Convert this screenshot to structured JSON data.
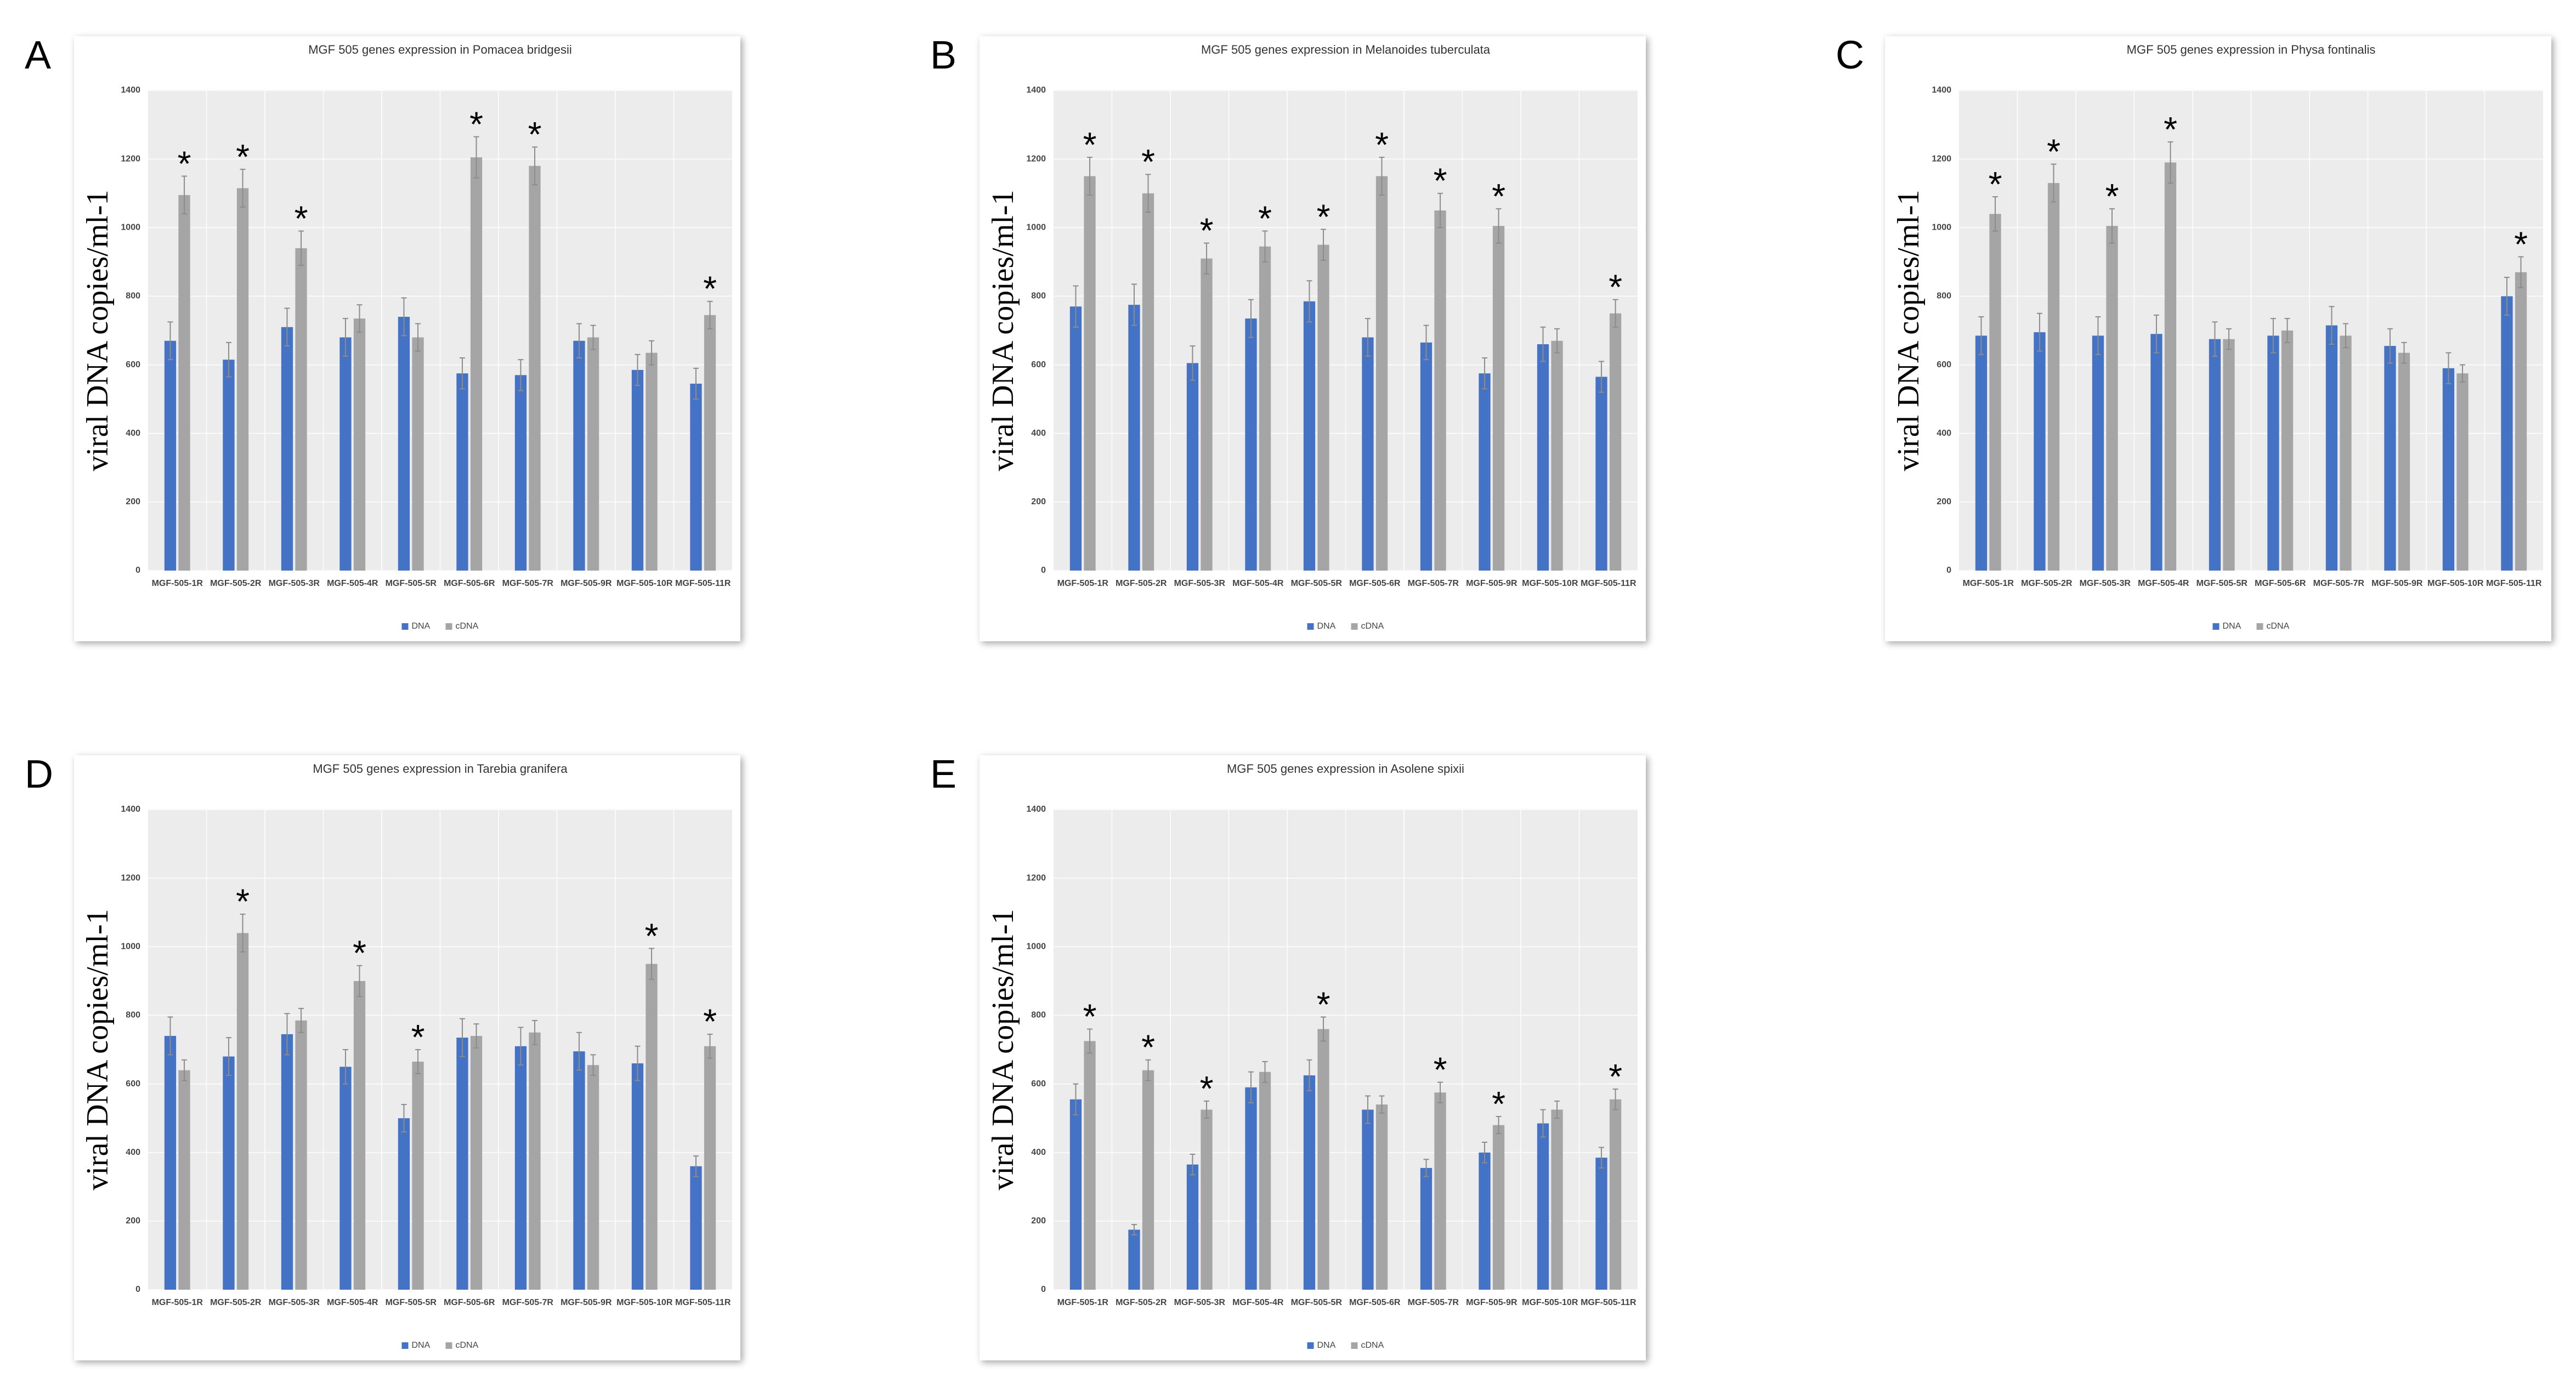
{
  "chart_data": [
    {
      "type": "bar",
      "panel": "A",
      "title": "MGF 505 genes expression in Pomacea bridgesii",
      "y_label": "viral DNA copies/ml-1",
      "categories": [
        "MGF-505-1R",
        "MGF-505-2R",
        "MGF-505-3R",
        "MGF-505-4R",
        "MGF-505-5R",
        "MGF-505-6R",
        "MGF-505-7R",
        "MGF-505-9R",
        "MGF-505-10R",
        "MGF-505-11R"
      ],
      "series": [
        {
          "name": "DNA",
          "color": "#4472c4",
          "values": [
            670,
            615,
            710,
            680,
            740,
            575,
            570,
            670,
            585,
            545
          ],
          "errors": [
            55,
            50,
            55,
            55,
            55,
            45,
            45,
            50,
            45,
            45
          ]
        },
        {
          "name": "cDNA",
          "color": "#a5a5a5",
          "values": [
            1095,
            1115,
            940,
            735,
            680,
            1205,
            1180,
            680,
            635,
            745
          ],
          "errors": [
            55,
            55,
            50,
            40,
            40,
            60,
            55,
            35,
            35,
            40
          ]
        }
      ],
      "significance": [
        "*",
        "*",
        "*",
        null,
        null,
        "*",
        "*",
        null,
        null,
        "*"
      ],
      "ylim": [
        0,
        1400
      ],
      "yticks": [
        0,
        200,
        400,
        600,
        800,
        1000,
        1200,
        1400
      ],
      "grid": true,
      "legend": "bottom"
    },
    {
      "type": "bar",
      "panel": "B",
      "title": "MGF 505 genes expression in Melanoides tuberculata",
      "y_label": "viral DNA copies/ml-1",
      "categories": [
        "MGF-505-1R",
        "MGF-505-2R",
        "MGF-505-3R",
        "MGF-505-4R",
        "MGF-505-5R",
        "MGF-505-6R",
        "MGF-505-7R",
        "MGF-505-9R",
        "MGF-505-10R",
        "MGF-505-11R"
      ],
      "series": [
        {
          "name": "DNA",
          "color": "#4472c4",
          "values": [
            770,
            775,
            605,
            735,
            785,
            680,
            665,
            575,
            660,
            565
          ],
          "errors": [
            60,
            60,
            50,
            55,
            60,
            55,
            50,
            45,
            50,
            45
          ]
        },
        {
          "name": "cDNA",
          "color": "#a5a5a5",
          "values": [
            1150,
            1100,
            910,
            945,
            950,
            1150,
            1050,
            1005,
            670,
            750
          ],
          "errors": [
            55,
            55,
            45,
            45,
            45,
            55,
            50,
            50,
            35,
            40
          ]
        }
      ],
      "significance": [
        "*",
        "*",
        "*",
        "*",
        "*",
        "*",
        "*",
        "*",
        null,
        "*"
      ],
      "ylim": [
        0,
        1400
      ],
      "yticks": [
        0,
        200,
        400,
        600,
        800,
        1000,
        1200,
        1400
      ],
      "grid": true,
      "legend": "bottom"
    },
    {
      "type": "bar",
      "panel": "C",
      "title": "MGF 505 genes expression in Physa fontinalis",
      "y_label": "viral DNA copies/ml-1",
      "categories": [
        "MGF-505-1R",
        "MGF-505-2R",
        "MGF-505-3R",
        "MGF-505-4R",
        "MGF-505-5R",
        "MGF-505-6R",
        "MGF-505-7R",
        "MGF-505-9R",
        "MGF-505-10R",
        "MGF-505-11R"
      ],
      "series": [
        {
          "name": "DNA",
          "color": "#4472c4",
          "values": [
            685,
            695,
            685,
            690,
            675,
            685,
            715,
            655,
            590,
            800
          ],
          "errors": [
            55,
            55,
            55,
            55,
            50,
            50,
            55,
            50,
            45,
            55
          ]
        },
        {
          "name": "cDNA",
          "color": "#a5a5a5",
          "values": [
            1040,
            1130,
            1005,
            1190,
            675,
            700,
            685,
            635,
            575,
            870
          ],
          "errors": [
            50,
            55,
            50,
            60,
            30,
            35,
            35,
            30,
            25,
            45
          ]
        }
      ],
      "significance": [
        "*",
        "*",
        "*",
        "*",
        null,
        null,
        null,
        null,
        null,
        "*"
      ],
      "ylim": [
        0,
        1400
      ],
      "yticks": [
        0,
        200,
        400,
        600,
        800,
        1000,
        1200,
        1400
      ],
      "grid": true,
      "legend": "bottom"
    },
    {
      "type": "bar",
      "panel": "D",
      "title": "MGF 505 genes expression in Tarebia granifera",
      "y_label": "viral DNA copies/ml-1",
      "categories": [
        "MGF-505-1R",
        "MGF-505-2R",
        "MGF-505-3R",
        "MGF-505-4R",
        "MGF-505-5R",
        "MGF-505-6R",
        "MGF-505-7R",
        "MGF-505-9R",
        "MGF-505-10R",
        "MGF-505-11R"
      ],
      "series": [
        {
          "name": "DNA",
          "color": "#4472c4",
          "values": [
            740,
            680,
            745,
            650,
            500,
            735,
            710,
            695,
            660,
            360
          ],
          "errors": [
            55,
            55,
            60,
            50,
            40,
            55,
            55,
            55,
            50,
            30
          ]
        },
        {
          "name": "cDNA",
          "color": "#a5a5a5",
          "values": [
            640,
            1040,
            785,
            900,
            665,
            740,
            750,
            655,
            950,
            710
          ],
          "errors": [
            30,
            55,
            35,
            45,
            35,
            35,
            35,
            30,
            45,
            35
          ]
        }
      ],
      "significance": [
        null,
        "*",
        null,
        "*",
        "*",
        null,
        null,
        null,
        "*",
        "*"
      ],
      "ylim": [
        0,
        1400
      ],
      "yticks": [
        0,
        200,
        400,
        600,
        800,
        1000,
        1200,
        1400
      ],
      "grid": true,
      "legend": "bottom"
    },
    {
      "type": "bar",
      "panel": "E",
      "title": "MGF 505 genes expression in Asolene spixii",
      "y_label": "viral DNA copies/ml-1",
      "categories": [
        "MGF-505-1R",
        "MGF-505-2R",
        "MGF-505-3R",
        "MGF-505-4R",
        "MGF-505-5R",
        "MGF-505-6R",
        "MGF-505-7R",
        "MGF-505-9R",
        "MGF-505-10R",
        "MGF-505-11R"
      ],
      "series": [
        {
          "name": "DNA",
          "color": "#4472c4",
          "values": [
            555,
            175,
            365,
            590,
            625,
            525,
            355,
            400,
            485,
            385
          ],
          "errors": [
            45,
            15,
            30,
            45,
            45,
            40,
            25,
            30,
            40,
            30
          ]
        },
        {
          "name": "cDNA",
          "color": "#a5a5a5",
          "values": [
            725,
            640,
            525,
            635,
            760,
            540,
            575,
            480,
            525,
            555
          ],
          "errors": [
            35,
            30,
            25,
            30,
            35,
            25,
            30,
            25,
            25,
            30
          ]
        }
      ],
      "significance": [
        "*",
        "*",
        "*",
        null,
        "*",
        null,
        "*",
        "*",
        null,
        "*"
      ],
      "ylim": [
        0,
        1400
      ],
      "yticks": [
        0,
        200,
        400,
        600,
        800,
        1000,
        1200,
        1400
      ],
      "grid": true,
      "legend": "bottom"
    }
  ]
}
